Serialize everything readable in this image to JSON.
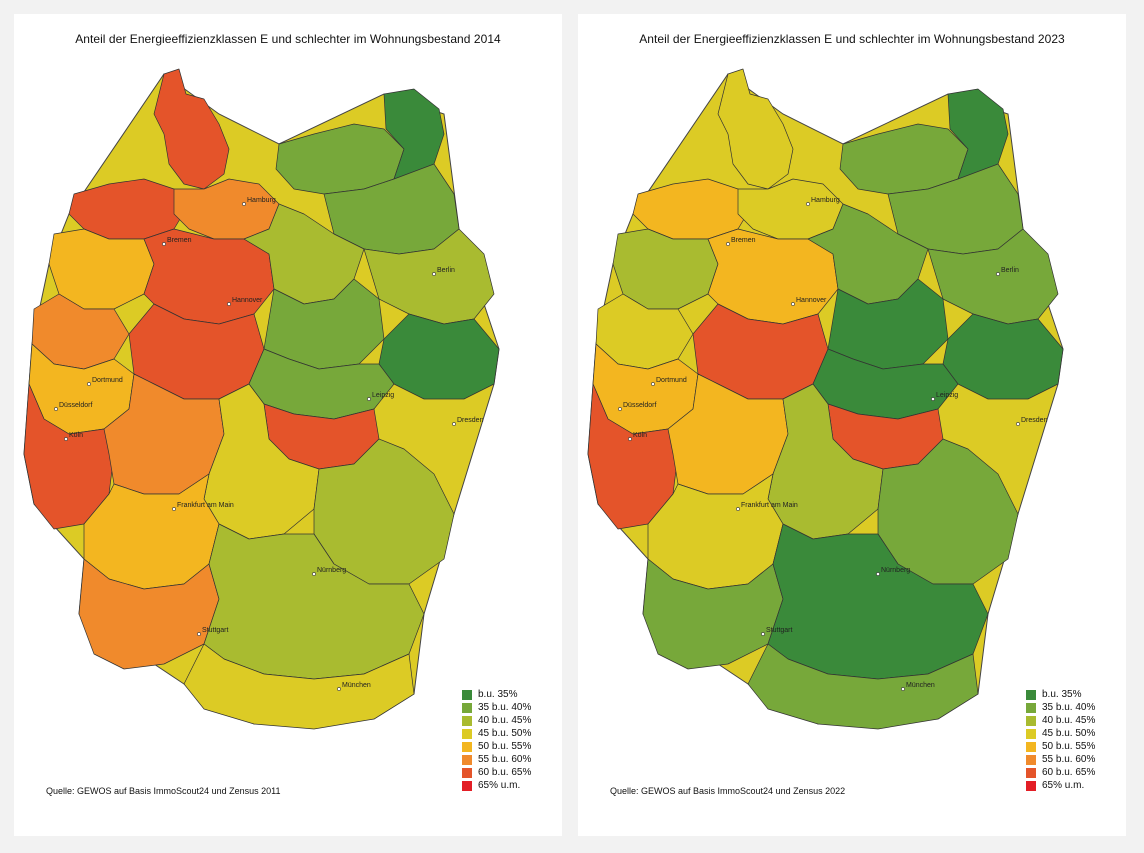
{
  "panels": [
    {
      "title": "Anteil der Energieeffizienzklassen E und schlechter im Wohnungsbestand 2014",
      "source": "Quelle: GEWOS auf Basis ImmoScout24 und Zensus 2011",
      "regions": {
        "northwest": "c65",
        "north_coast": "c65",
        "hamburg_area": "c60",
        "mecklenburg": "c40",
        "vorpommern": "c35",
        "brandenburg_north": "c40",
        "brandenburg_south": "c45",
        "lower_saxony_west": "c55",
        "lower_saxony_center": "c65",
        "lower_saxony_east": "c45",
        "ruhr": "c60",
        "nrw_south": "c55",
        "hesse_north": "c65",
        "hesse_south": "c60",
        "saxony_anhalt": "c40",
        "thuringia": "c40",
        "saxony": "c35",
        "rhineland": "c65",
        "bw_north": "c55",
        "bw_south": "c60",
        "franconia": "c50",
        "upper_franconia": "c65",
        "bavaria_east": "c45",
        "bavaria_south": "c45",
        "alpine": "c50"
      }
    },
    {
      "title": "Anteil der Energieeffizienzklassen E und schlechter im Wohnungsbestand 2023",
      "source": "Quelle: GEWOS auf Basis ImmoScout24 und Zensus 2022",
      "regions": {
        "northwest": "c55",
        "north_coast": "c50",
        "hamburg_area": "c50",
        "mecklenburg": "c40",
        "vorpommern": "c35",
        "brandenburg_north": "c40",
        "brandenburg_south": "c40",
        "lower_saxony_west": "c45",
        "lower_saxony_center": "c55",
        "lower_saxony_east": "c40",
        "ruhr": "c50",
        "nrw_south": "c55",
        "hesse_north": "c65",
        "hesse_south": "c55",
        "saxony_anhalt": "c35",
        "thuringia": "c35",
        "saxony": "c35",
        "rhineland": "c65",
        "bw_north": "c50",
        "bw_south": "c40",
        "franconia": "c45",
        "upper_franconia": "c65",
        "bavaria_east": "c40",
        "bavaria_south": "c35",
        "alpine": "c40"
      }
    }
  ],
  "cities": [
    {
      "name": "Hamburg"
    },
    {
      "name": "Bremen"
    },
    {
      "name": "Berlin"
    },
    {
      "name": "Hannover"
    },
    {
      "name": "Dortmund"
    },
    {
      "name": "Düsseldorf"
    },
    {
      "name": "Köln"
    },
    {
      "name": "Leipzig"
    },
    {
      "name": "Dresden"
    },
    {
      "name": "Frankfurt am Main"
    },
    {
      "name": "Nürnberg"
    },
    {
      "name": "Stuttgart"
    },
    {
      "name": "München"
    }
  ],
  "legend": [
    {
      "id": "c35",
      "label": "b.u. 35%",
      "color": "#3a8a3a"
    },
    {
      "id": "c40",
      "label": "35 b.u. 40%",
      "color": "#77a83a"
    },
    {
      "id": "c45",
      "label": "40 b.u. 45%",
      "color": "#a9bb30"
    },
    {
      "id": "c50",
      "label": "45 b.u. 50%",
      "color": "#dccb25"
    },
    {
      "id": "c55",
      "label": "50 b.u. 55%",
      "color": "#f3b620"
    },
    {
      "id": "c60",
      "label": "55 b.u. 60%",
      "color": "#f08a2c"
    },
    {
      "id": "c65",
      "label": "60 b.u. 65%",
      "color": "#e4542a"
    },
    {
      "id": "c70",
      "label": "65% u.m.",
      "color": "#e31e26"
    }
  ]
}
